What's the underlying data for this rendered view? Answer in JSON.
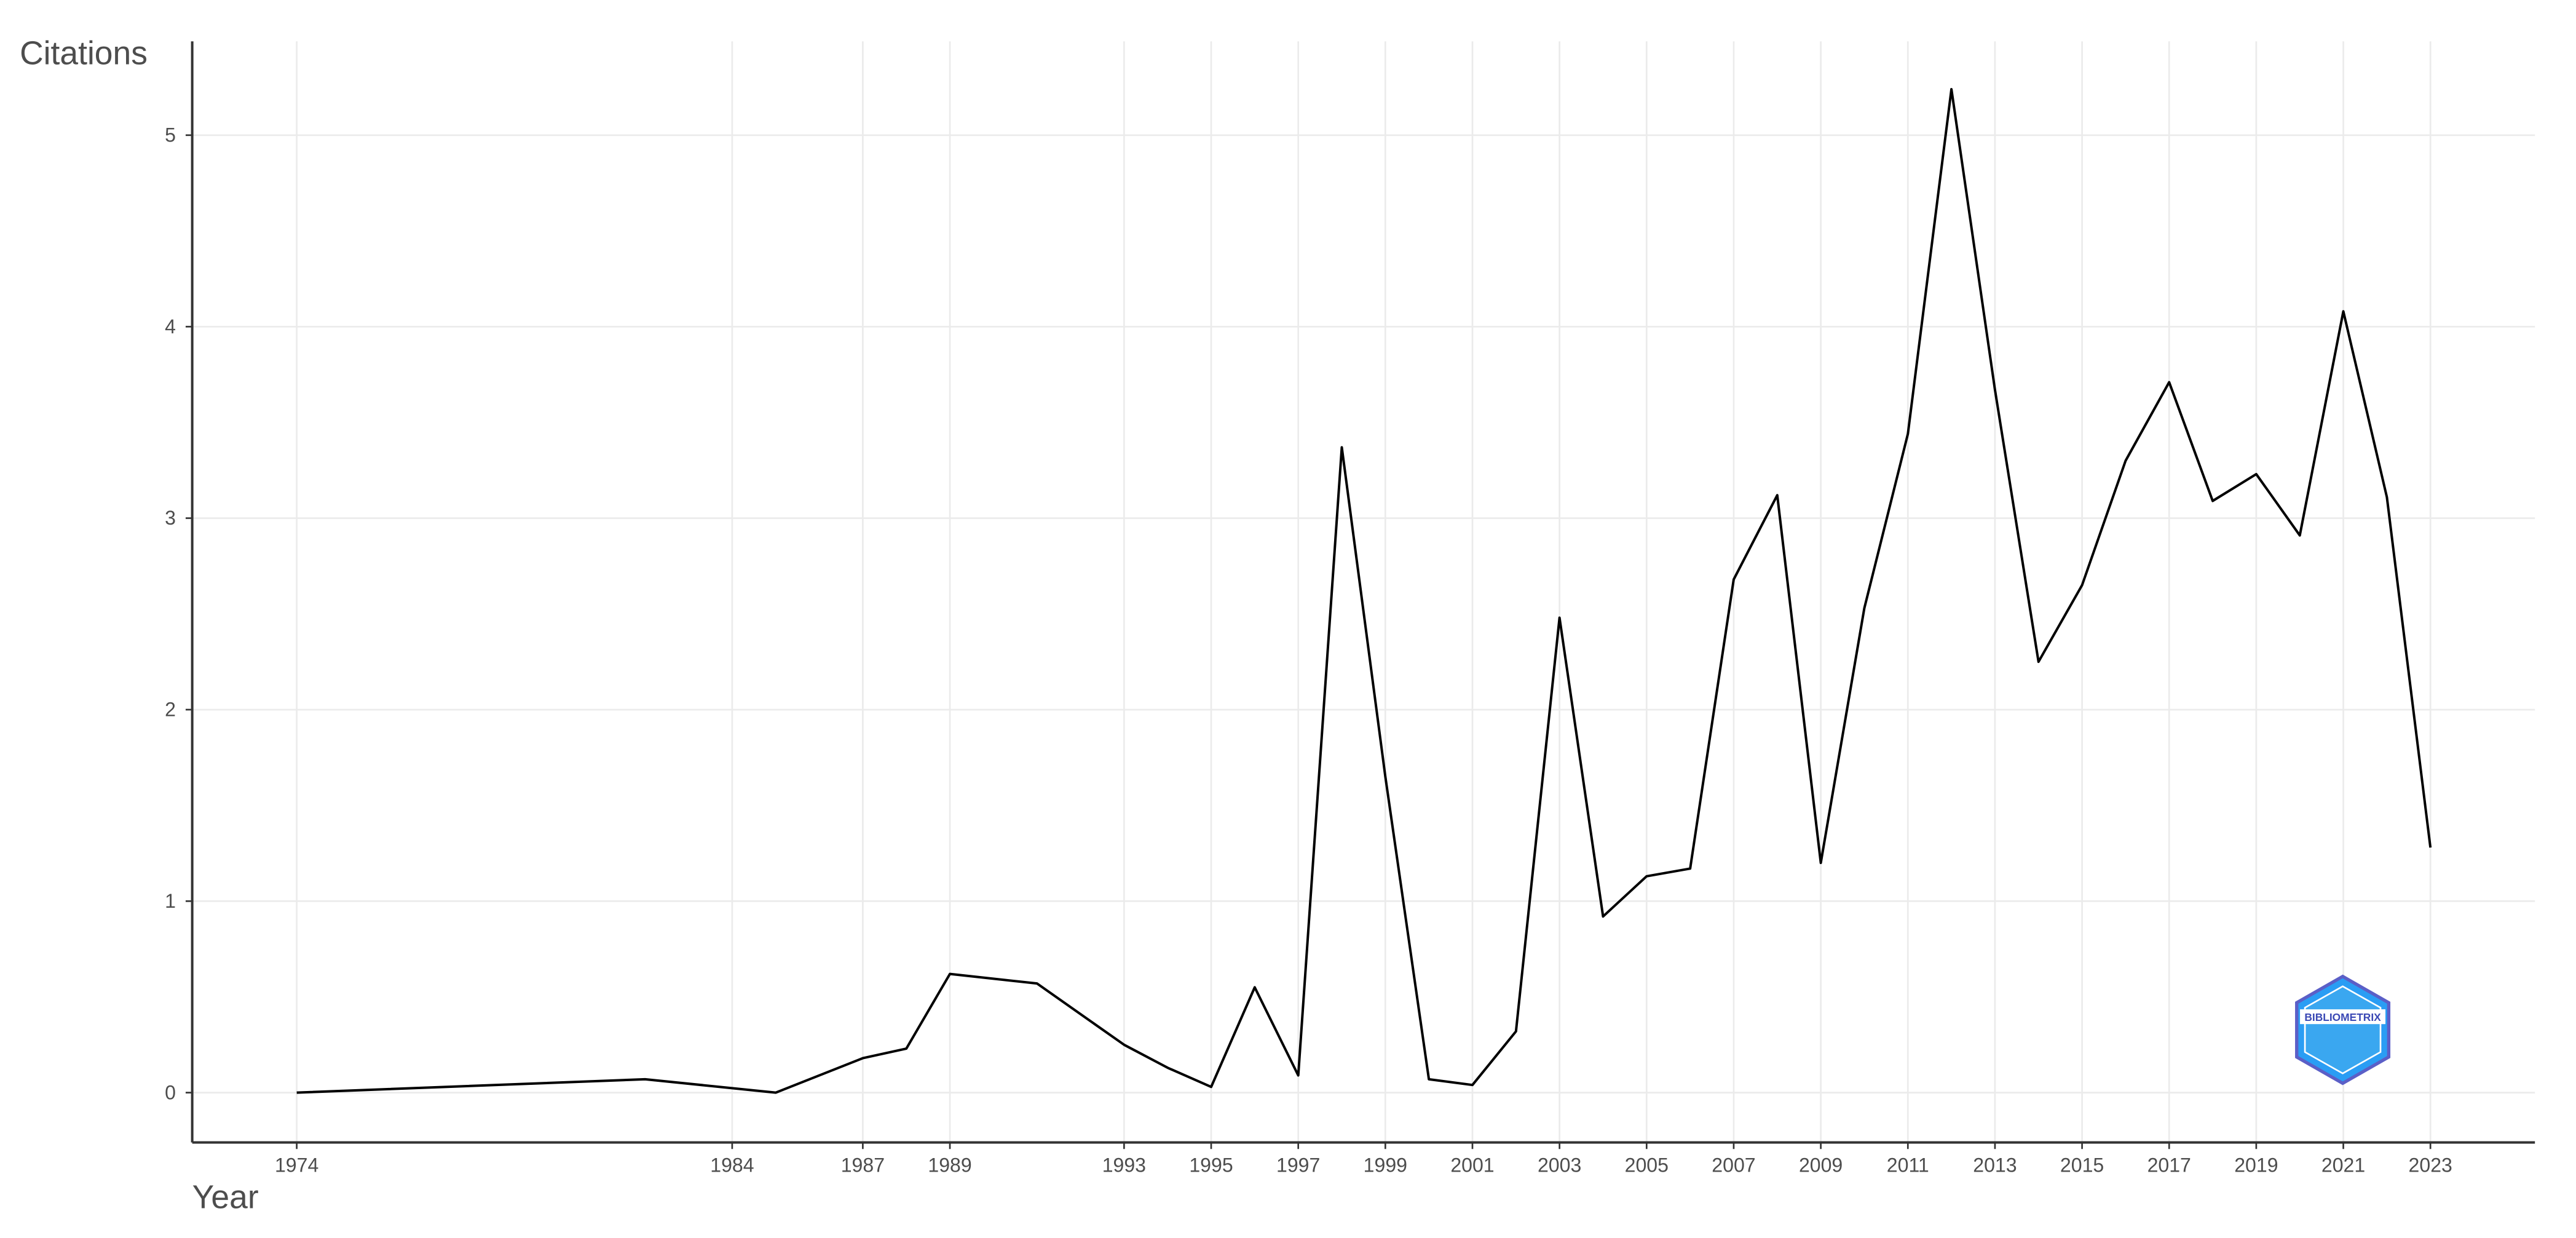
{
  "chart_data": {
    "type": "line",
    "y_label": "Citations",
    "x_label": "Year",
    "x": [
      1974,
      1982,
      1985,
      1987,
      1988,
      1989,
      1991,
      1993,
      1994,
      1995,
      1996,
      1997,
      1998,
      1999,
      2000,
      2001,
      2002,
      2003,
      2004,
      2005,
      2006,
      2007,
      2008,
      2009,
      2010,
      2011,
      2012,
      2013,
      2014,
      2015,
      2016,
      2017,
      2018,
      2019,
      2020,
      2021,
      2022,
      2023
    ],
    "values": [
      0,
      0.07,
      0,
      0.18,
      0.23,
      0.62,
      0.57,
      0.25,
      0.13,
      0.03,
      0.55,
      0.09,
      3.37,
      1.65,
      0.07,
      0.04,
      0.32,
      2.48,
      0.92,
      1.13,
      1.17,
      2.68,
      3.12,
      1.2,
      2.53,
      3.44,
      5.24,
      3.67,
      2.25,
      2.65,
      3.3,
      3.71,
      3.09,
      3.23,
      2.91,
      4.08,
      3.11,
      1.28
    ],
    "color": "#000000",
    "xlim": [
      1971.6,
      2025.4
    ],
    "ylim": [
      -0.26,
      5.49
    ],
    "xticks": [
      1974,
      1984,
      1987,
      1989,
      1993,
      1995,
      1997,
      1999,
      2001,
      2003,
      2005,
      2007,
      2009,
      2011,
      2013,
      2015,
      2017,
      2019,
      2021,
      2023
    ],
    "yticks": [
      0,
      1,
      2,
      3,
      4,
      5
    ],
    "grid": true
  },
  "logo": "BIBLIOMETRIX"
}
